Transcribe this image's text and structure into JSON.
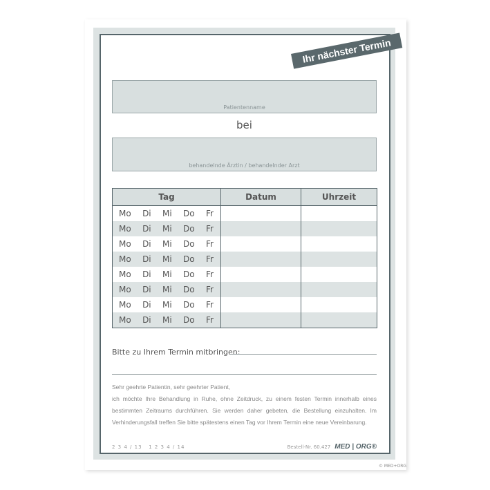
{
  "banner": "Ihr nächster Termin",
  "fields": {
    "patient_label": "Patientenname",
    "bei": "bei",
    "doctor_label": "behandelnde Ärztin / behandelnder Arzt"
  },
  "table": {
    "headers": [
      "Tag",
      "Datum",
      "Uhrzeit"
    ],
    "days": [
      "Mo",
      "Di",
      "Mi",
      "Do",
      "Fr"
    ]
  },
  "bring_label": "Bitte zu Ihrem Termin mitbringen:",
  "paragraph": [
    "Sehr geehrte Patientin, sehr geehrter Patient,",
    "ich möchte Ihre Behandlung in Ruhe, ohne Zeitdruck, zu einem festen Termin innerhalb eines bestimmten Zeitraums durchführen. Sie werden daher gebeten, die Bestellung einzuhalten. Im Verhinderungsfall treffen Sie bitte spätestens einen Tag vor Ihrem Termin eine neue Vereinbarung."
  ],
  "footer": {
    "codes": "2 3 4 / 13   1 2 3 4 / 14",
    "order_no": "Bestell-Nr. 60.427",
    "logo": "MED | ORG®",
    "copyright": "© MED+ORG"
  }
}
